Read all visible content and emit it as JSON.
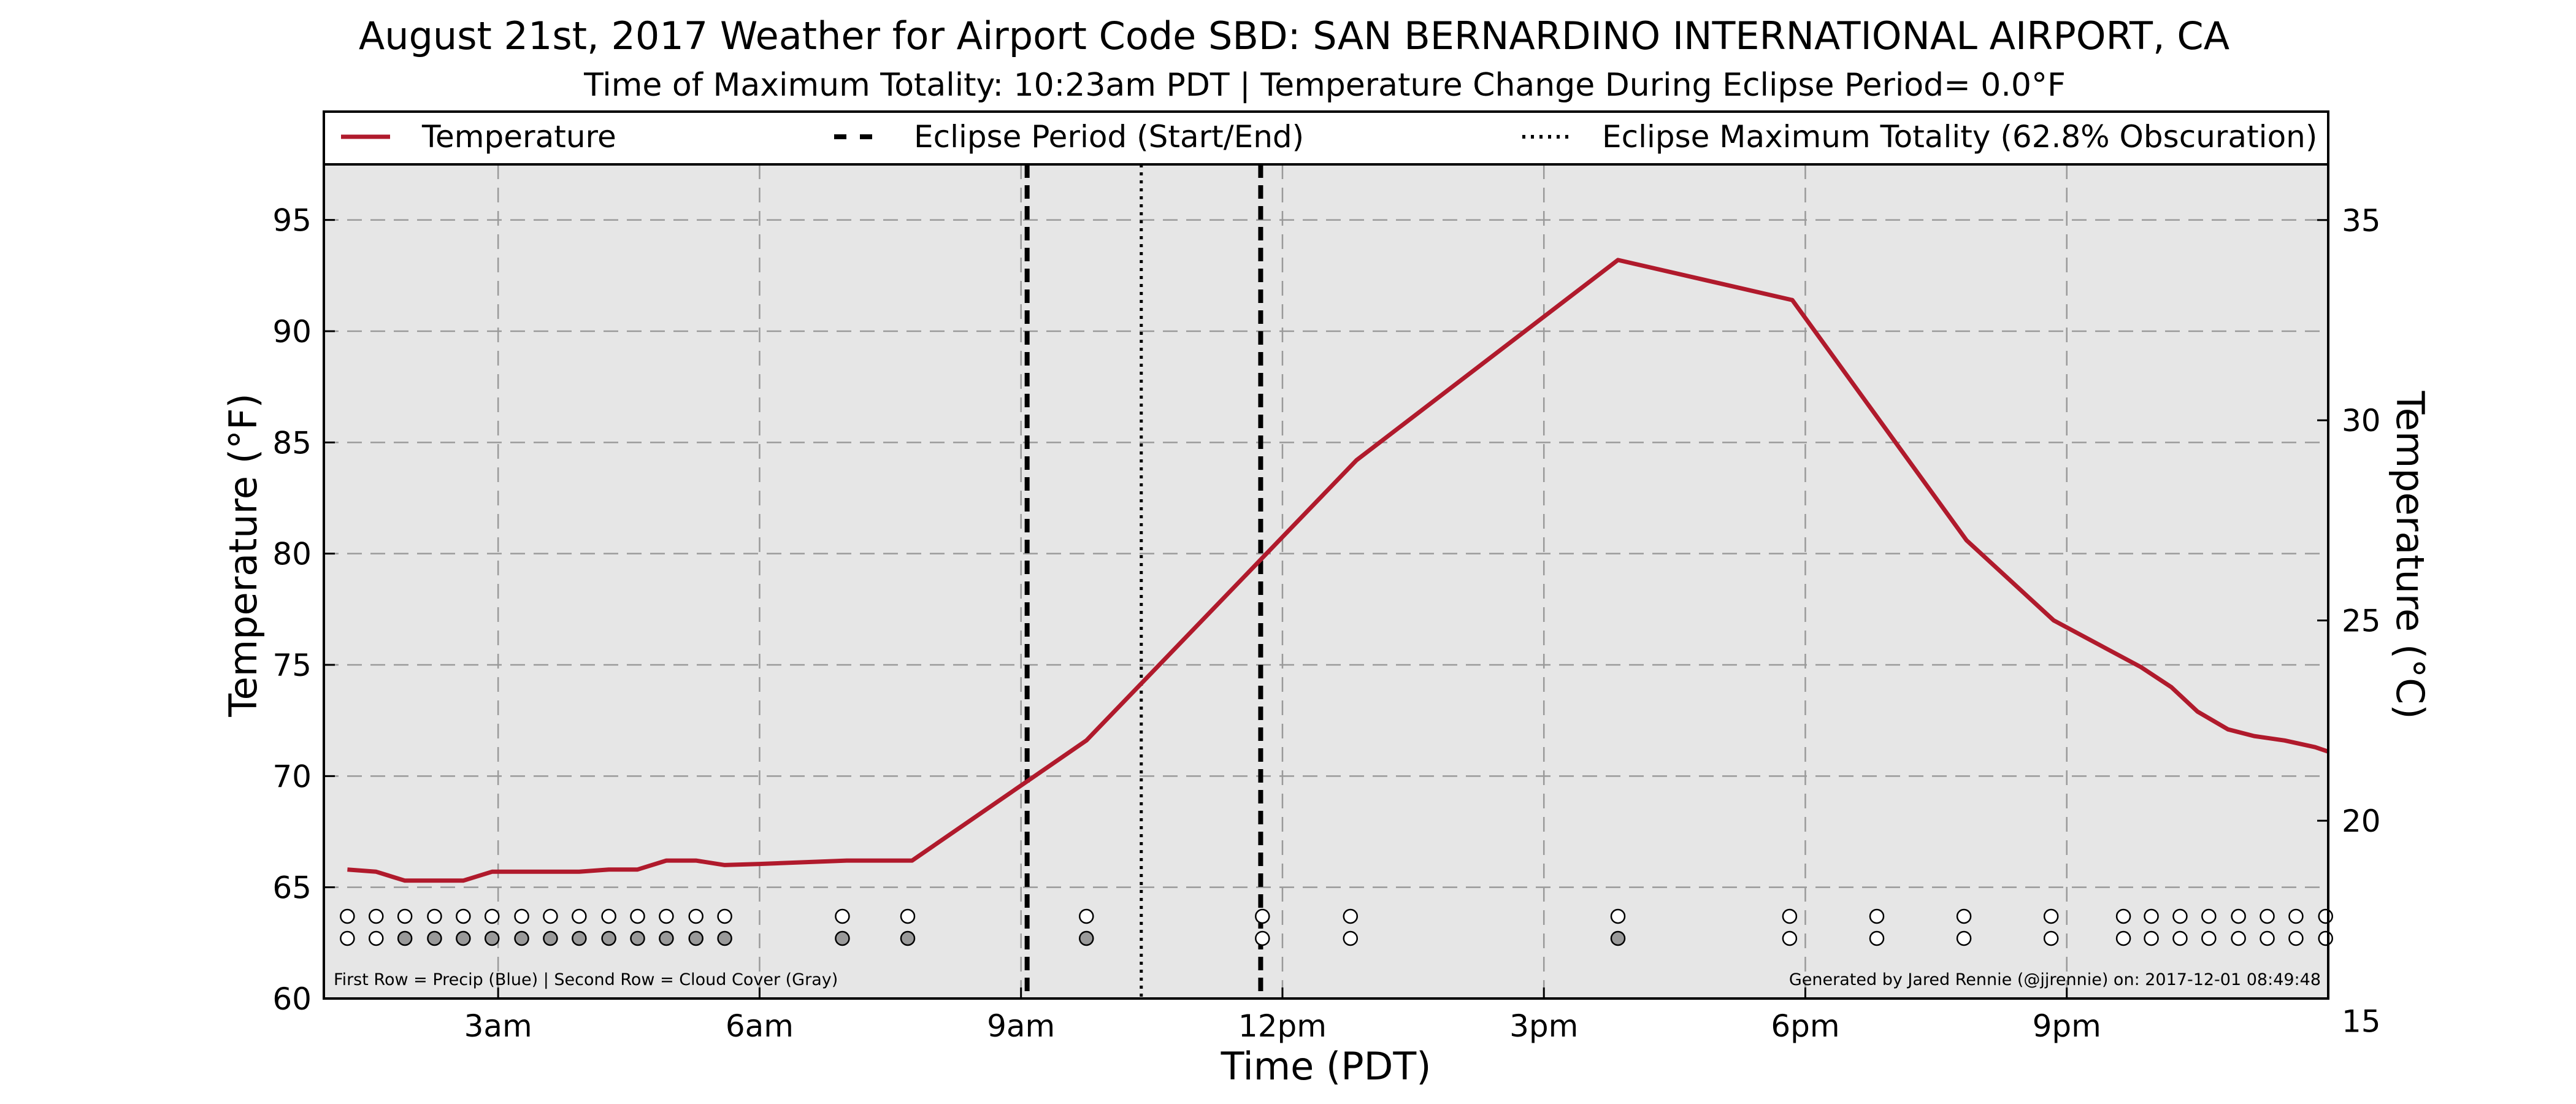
{
  "title": "August 21st, 2017 Weather for Airport Code SBD: SAN BERNARDINO INTERNATIONAL AIRPORT, CA",
  "subtitle": "Time of Maximum Totality: 10:23am PDT | Temperature Change During Eclipse Period= 0.0°F",
  "footer_left": "First Row = Precip (Blue) | Second Row = Cloud Cover (Gray)",
  "footer_right": "Generated by Jared Rennie (@jjrennie) on: 2017-12-01 08:49:48",
  "legend": {
    "placement": "top",
    "items": [
      "Temperature",
      "Eclipse Period (Start/End)",
      "Eclipse Maximum Totality (62.8% Obscuration)"
    ]
  },
  "colors": {
    "temperature_line": "#b01a2c",
    "plot_background": "#e6e6e6",
    "cloud_filled": "#9a9a9a",
    "marker_empty": "#ffffff"
  },
  "chart_data": {
    "type": "line",
    "xlabel": "Time (PDT)",
    "ylabel": "Temperature (°F)",
    "ylabel_right": "Temperature (°C)",
    "xlim": [
      1.0,
      24.0
    ],
    "ylim": [
      60,
      97.5
    ],
    "ylim_right": [
      15.56,
      36.39
    ],
    "grid": true,
    "x_ticks": [
      {
        "x": 3,
        "label": "3am"
      },
      {
        "x": 6,
        "label": "6am"
      },
      {
        "x": 9,
        "label": "9am"
      },
      {
        "x": 12,
        "label": "12pm"
      },
      {
        "x": 15,
        "label": "3pm"
      },
      {
        "x": 18,
        "label": "6pm"
      },
      {
        "x": 21,
        "label": "9pm"
      }
    ],
    "y_ticks": [
      60,
      65,
      70,
      75,
      80,
      85,
      90,
      95
    ],
    "y_ticks_right": [
      15,
      20,
      25,
      30,
      35
    ],
    "series": [
      {
        "name": "Temperature",
        "x": [
          1.27,
          1.6,
          1.93,
          2.27,
          2.6,
          2.93,
          3.27,
          3.6,
          3.93,
          4.27,
          4.6,
          4.93,
          5.27,
          5.6,
          6.0,
          7.0,
          7.75,
          9.75,
          12.85,
          15.85,
          17.85,
          19.85,
          20.85,
          21.85,
          22.2,
          22.5,
          22.85,
          23.15,
          23.5,
          23.85,
          24.0
        ],
        "y": [
          65.8,
          65.7,
          65.3,
          65.3,
          65.3,
          65.7,
          65.7,
          65.7,
          65.7,
          65.8,
          65.8,
          66.2,
          66.2,
          66.0,
          66.05,
          66.2,
          66.2,
          71.6,
          84.2,
          93.2,
          91.4,
          80.6,
          77.0,
          74.9,
          74.0,
          72.9,
          72.1,
          71.8,
          71.6,
          71.3,
          71.1
        ]
      }
    ],
    "eclipse_start": 9.07,
    "eclipse_end": 11.75,
    "eclipse_max": 10.38,
    "marker_rows": {
      "x": [
        1.27,
        1.6,
        1.93,
        2.27,
        2.6,
        2.93,
        3.27,
        3.6,
        3.93,
        4.27,
        4.6,
        4.93,
        5.27,
        5.6,
        6.95,
        7.7,
        9.75,
        11.77,
        12.78,
        15.85,
        17.82,
        18.82,
        19.82,
        20.82,
        21.65,
        21.97,
        22.3,
        22.63,
        22.97,
        23.3,
        23.63,
        23.97
      ],
      "precip": [
        0,
        0,
        0,
        0,
        0,
        0,
        0,
        0,
        0,
        0,
        0,
        0,
        0,
        0,
        0,
        0,
        0,
        0,
        0,
        0,
        0,
        0,
        0,
        0,
        0,
        0,
        0,
        0,
        0,
        0,
        0,
        0
      ],
      "cloud": [
        0,
        0,
        1,
        1,
        1,
        1,
        1,
        1,
        1,
        1,
        1,
        1,
        1,
        1,
        1,
        1,
        1,
        0,
        0,
        1,
        0,
        0,
        0,
        0,
        0,
        0,
        0,
        0,
        0,
        0,
        0,
        0
      ]
    }
  }
}
